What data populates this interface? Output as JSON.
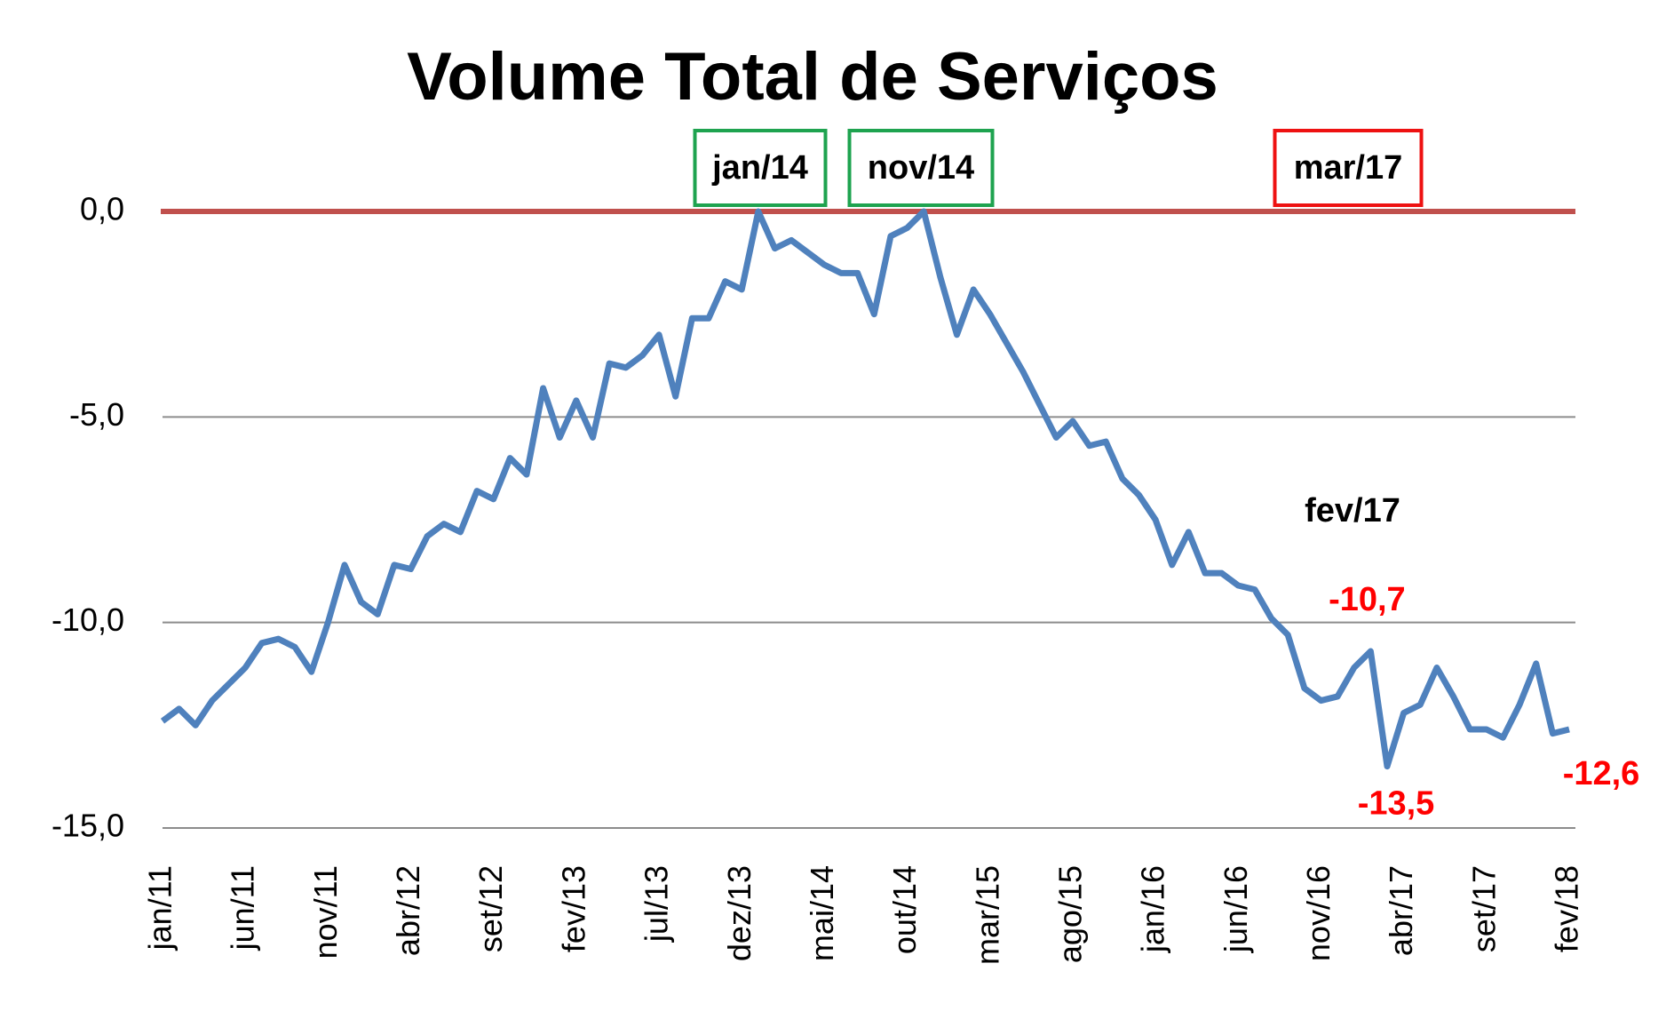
{
  "chart_data": {
    "type": "line",
    "title": "Volume Total de Serviços",
    "categories": [
      "jan/11",
      null,
      null,
      null,
      null,
      "jun/11",
      null,
      null,
      null,
      null,
      "nov/11",
      null,
      null,
      null,
      null,
      "abr/12",
      null,
      null,
      null,
      null,
      "set/12",
      null,
      null,
      null,
      null,
      "fev/13",
      null,
      null,
      null,
      null,
      "jul/13",
      null,
      null,
      null,
      null,
      "dez/13",
      null,
      null,
      null,
      null,
      "mai/14",
      null,
      null,
      null,
      null,
      "out/14",
      null,
      null,
      null,
      null,
      "mar/15",
      null,
      null,
      null,
      null,
      "ago/15",
      null,
      null,
      null,
      null,
      "jan/16",
      null,
      null,
      null,
      null,
      "jun/16",
      null,
      null,
      null,
      null,
      "nov/16",
      null,
      null,
      null,
      null,
      "abr/17",
      null,
      null,
      null,
      null,
      "set/17",
      null,
      null,
      null,
      null,
      "fev/18"
    ],
    "series": [
      {
        "color": "#4f81bd",
        "values": [
          -12.4,
          -12.1,
          -12.5,
          -11.9,
          -11.5,
          -11.1,
          -10.5,
          -10.4,
          -10.6,
          -11.2,
          -10.0,
          -8.6,
          -9.5,
          -9.8,
          -8.6,
          -8.7,
          -7.9,
          -7.6,
          -7.8,
          -6.8,
          -7.0,
          -6.0,
          -6.4,
          -4.3,
          -5.5,
          -4.6,
          -5.5,
          -3.7,
          -3.8,
          -3.5,
          -3.0,
          -4.5,
          -2.6,
          -2.6,
          -1.7,
          -1.9,
          0.0,
          -0.9,
          -0.7,
          -1.0,
          -1.3,
          -1.5,
          -1.5,
          -2.5,
          -0.6,
          -0.4,
          0.0,
          -1.6,
          -3.0,
          -1.9,
          -2.5,
          -3.2,
          -3.9,
          -4.7,
          -5.5,
          -5.1,
          -5.7,
          -5.6,
          -6.5,
          -6.9,
          -7.5,
          -8.6,
          -7.8,
          -8.8,
          -8.8,
          -9.1,
          -9.2,
          -9.9,
          -10.3,
          -11.6,
          -11.9,
          -11.8,
          -11.1,
          -10.7,
          -13.5,
          -12.2,
          -12.0,
          -11.1,
          -11.8,
          -12.6,
          -12.6,
          -12.8,
          -12.0,
          -11.0,
          -12.7,
          -12.6
        ],
        "value_labels": [
          null,
          null,
          null,
          null,
          null,
          null,
          null,
          null,
          null,
          null,
          null,
          null,
          null,
          null,
          null,
          null,
          null,
          null,
          null,
          null,
          null,
          null,
          null,
          null,
          null,
          null,
          null,
          null,
          null,
          null,
          null,
          null,
          null,
          null,
          null,
          null,
          null,
          null,
          null,
          null,
          null,
          null,
          null,
          null,
          null,
          null,
          null,
          null,
          null,
          null,
          null,
          null,
          null,
          null,
          null,
          null,
          null,
          null,
          null,
          null,
          null,
          null,
          null,
          null,
          null,
          null,
          null,
          null,
          null,
          null,
          null,
          null,
          null,
          "-10,7",
          "-13,5",
          null,
          null,
          null,
          null,
          null,
          null,
          null,
          null,
          null,
          null,
          "-12,6"
        ],
        "value_label_color": "#ff0000"
      }
    ],
    "ylim": [
      -15,
      0
    ],
    "yticks": [
      {
        "value": 0,
        "label": "0,0"
      },
      {
        "value": -5,
        "label": "-5,0"
      },
      {
        "value": -10,
        "label": "-10,0"
      },
      {
        "value": -15,
        "label": "-15,0"
      }
    ],
    "grid": true,
    "reference_line": {
      "value": 0,
      "color": "#c0504d"
    },
    "annotations": [
      {
        "text": "jan/14",
        "box_color": "#1ea34f"
      },
      {
        "text": "nov/14",
        "box_color": "#1ea34f"
      },
      {
        "text": "mar/17",
        "box_color": "#ee1111"
      },
      {
        "text": "fev/17"
      }
    ]
  }
}
